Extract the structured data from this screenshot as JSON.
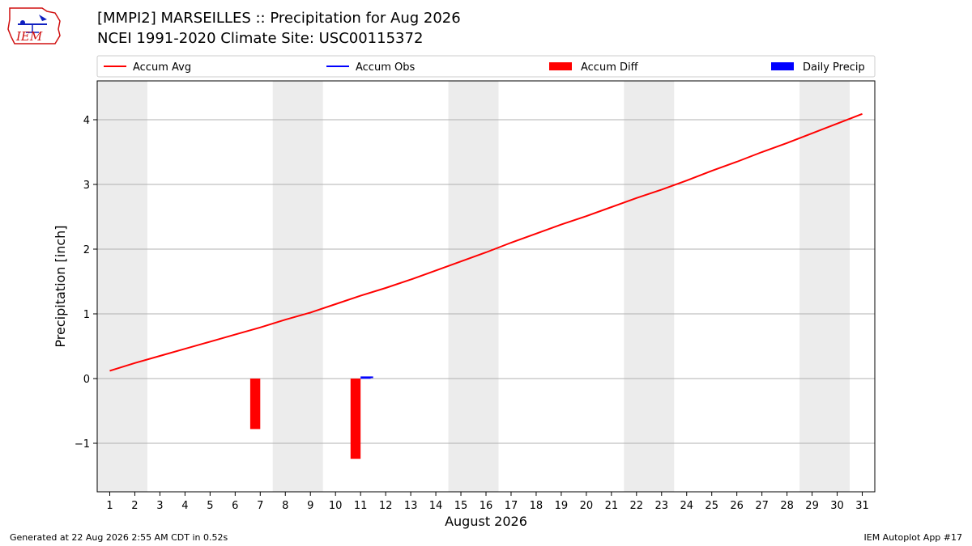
{
  "header": {
    "title_line1": "[MMPI2] MARSEILLES :: Precipitation for Aug 2026",
    "title_line2": "NCEI 1991-2020 Climate Site: USC00115372",
    "logo_text": "IEM"
  },
  "footer": {
    "generated": "Generated at 22 Aug 2026 2:55 AM CDT in 0.52s",
    "app": "IEM Autoplot App #17"
  },
  "colors": {
    "accum_avg": "#ff0000",
    "accum_obs": "#0000ff",
    "accum_diff": "#ff0000",
    "daily_precip": "#0000ff",
    "weekend_band": "#ececec",
    "grid": "#b0b0b0"
  },
  "chart_data": {
    "type": "line",
    "xlabel": "August 2026",
    "ylabel": "Precipitation [inch]",
    "xlim": [
      0.5,
      31.5
    ],
    "ylim": [
      -1.75,
      4.6
    ],
    "x": [
      1,
      2,
      3,
      4,
      5,
      6,
      7,
      8,
      9,
      10,
      11,
      12,
      13,
      14,
      15,
      16,
      17,
      18,
      19,
      20,
      21,
      22,
      23,
      24,
      25,
      26,
      27,
      28,
      29,
      30,
      31
    ],
    "yticks": [
      -1,
      0,
      1,
      2,
      3,
      4
    ],
    "ytick_labels": [
      "−1",
      "0",
      "1",
      "2",
      "3",
      "4"
    ],
    "grid": "horizontal",
    "legend_placement": "top",
    "legend": [
      {
        "label": "Accum Avg",
        "kind": "line",
        "color": "#ff0000"
      },
      {
        "label": "Accum Obs",
        "kind": "line",
        "color": "#0000ff"
      },
      {
        "label": "Accum Diff",
        "kind": "bar",
        "color": "#ff0000"
      },
      {
        "label": "Daily Precip",
        "kind": "bar",
        "color": "#0000ff"
      }
    ],
    "shaded_day_ranges": [
      [
        0.5,
        2.5
      ],
      [
        7.5,
        9.5
      ],
      [
        14.5,
        16.5
      ],
      [
        21.5,
        23.5
      ],
      [
        28.5,
        30.5
      ]
    ],
    "series": [
      {
        "name": "Accum Avg",
        "type": "line",
        "x": [
          1,
          2,
          3,
          4,
          5,
          6,
          7,
          8,
          9,
          10,
          11,
          12,
          13,
          14,
          15,
          16,
          17,
          18,
          19,
          20,
          21,
          22,
          23,
          24,
          25,
          26,
          27,
          28,
          29,
          30,
          31
        ],
        "values": [
          0.12,
          0.24,
          0.35,
          0.46,
          0.57,
          0.68,
          0.79,
          0.91,
          1.02,
          1.15,
          1.28,
          1.4,
          1.53,
          1.67,
          1.81,
          1.95,
          2.1,
          2.24,
          2.38,
          2.51,
          2.65,
          2.79,
          2.92,
          3.06,
          3.21,
          3.35,
          3.5,
          3.64,
          3.79,
          3.94,
          4.09
        ]
      },
      {
        "name": "Accum Obs",
        "type": "line",
        "x": [
          11,
          11.5
        ],
        "values": [
          0.02,
          0.02
        ]
      },
      {
        "name": "Accum Diff",
        "type": "bar",
        "x": [
          7,
          11
        ],
        "values": [
          -0.78,
          -1.24
        ]
      },
      {
        "name": "Daily Precip",
        "type": "bar",
        "x": [
          11
        ],
        "values": [
          0.01
        ]
      }
    ]
  }
}
